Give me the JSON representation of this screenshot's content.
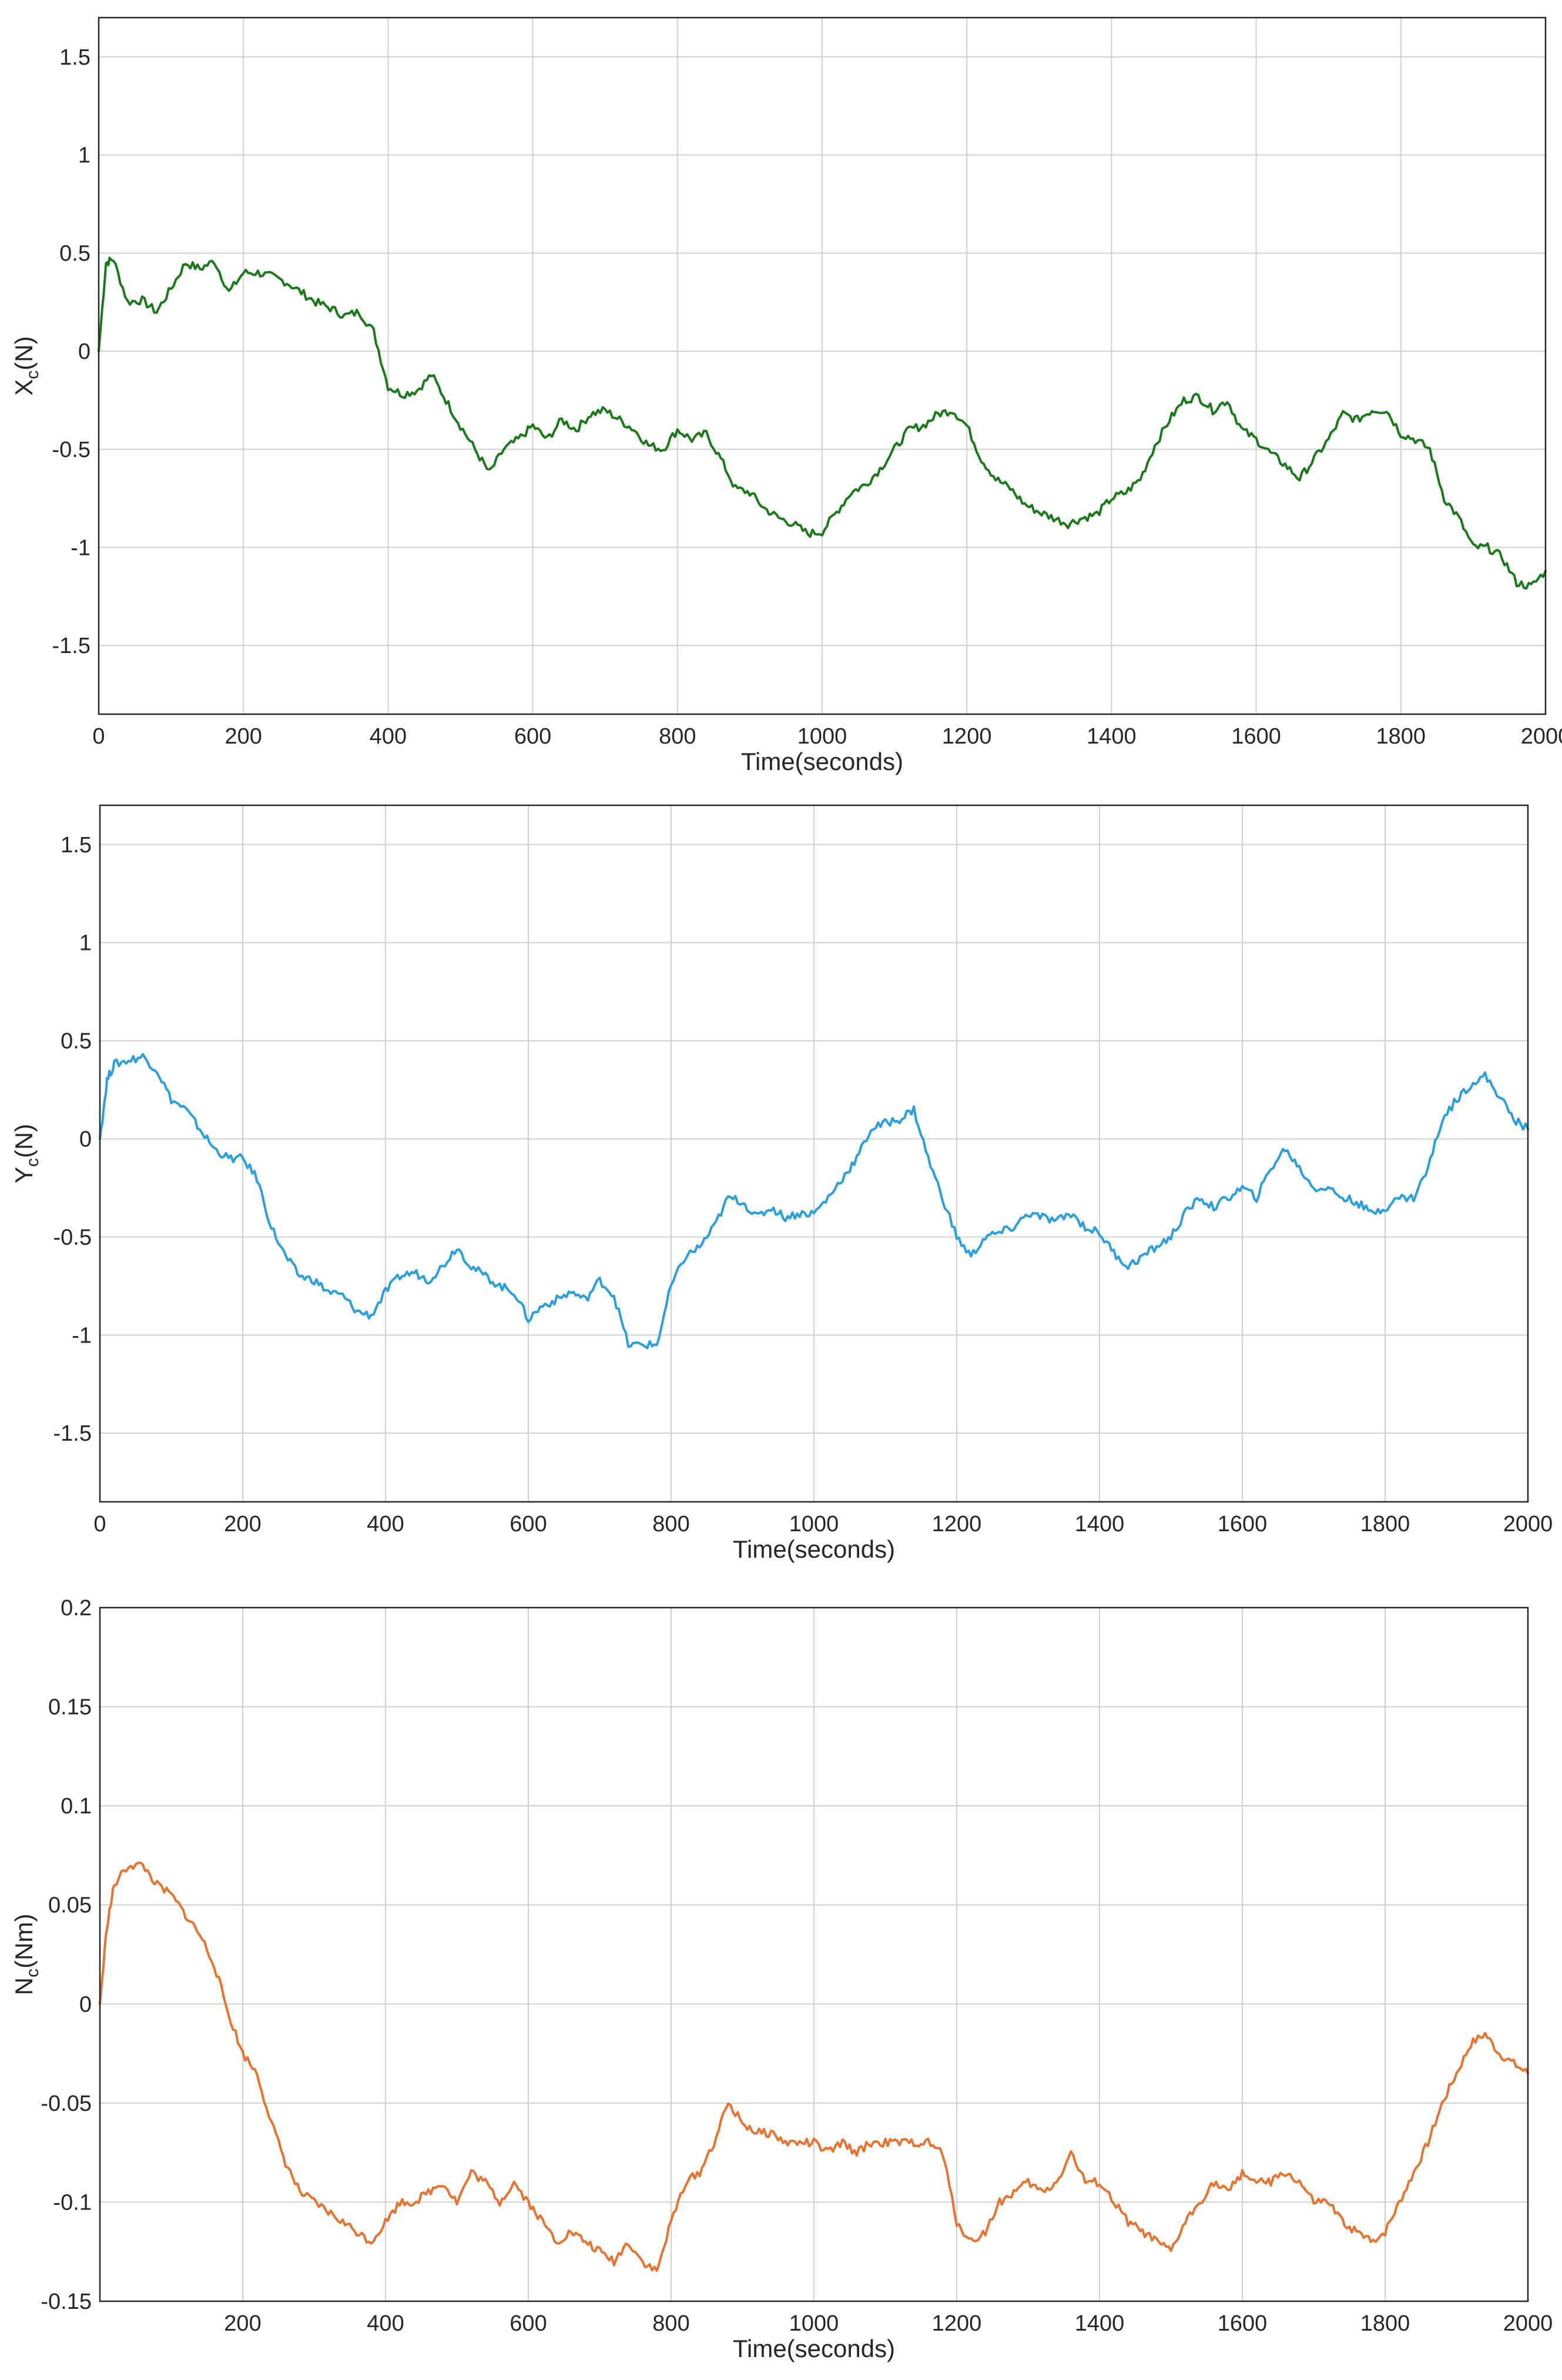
{
  "chart_data": [
    {
      "type": "line",
      "title": "",
      "xlabel": "Time(seconds)",
      "ylabel_main": "X",
      "ylabel_sub": "c",
      "ylabel_unit": "(N)",
      "xlim": [
        0,
        2000
      ],
      "ylim": [
        -1.85,
        1.7
      ],
      "xticks": [
        0,
        200,
        400,
        600,
        800,
        1000,
        1200,
        1400,
        1600,
        1800,
        2000
      ],
      "xtick_labels": [
        "0",
        "200",
        "400",
        "600",
        "800",
        "1000",
        "1200",
        "1400",
        "1600",
        "1800",
        "2000"
      ],
      "yticks": [
        1.5,
        1,
        0.5,
        0,
        -0.5,
        -1,
        -1.5
      ],
      "ytick_labels": [
        "1.5",
        "1",
        "0.5",
        "0",
        "-0.5",
        "-1",
        "-1.5"
      ],
      "grid": true,
      "color": "#1a7a1a",
      "series": [
        {
          "name": "Xc",
          "x": [
            0,
            10,
            20,
            40,
            60,
            80,
            100,
            120,
            140,
            160,
            180,
            200,
            220,
            240,
            260,
            280,
            300,
            320,
            340,
            360,
            380,
            400,
            420,
            440,
            460,
            480,
            500,
            520,
            540,
            560,
            580,
            600,
            620,
            640,
            660,
            680,
            700,
            720,
            740,
            760,
            780,
            800,
            820,
            840,
            860,
            880,
            900,
            920,
            940,
            960,
            980,
            1000,
            1020,
            1040,
            1060,
            1080,
            1100,
            1120,
            1140,
            1160,
            1180,
            1200,
            1220,
            1240,
            1260,
            1280,
            1300,
            1320,
            1340,
            1360,
            1380,
            1400,
            1420,
            1440,
            1460,
            1480,
            1500,
            1520,
            1540,
            1560,
            1580,
            1600,
            1620,
            1640,
            1660,
            1680,
            1700,
            1720,
            1740,
            1760,
            1780,
            1800,
            1820,
            1840,
            1860,
            1880,
            1900,
            1920,
            1940,
            1960,
            1980,
            2000
          ],
          "values": [
            0,
            0.45,
            0.47,
            0.25,
            0.26,
            0.2,
            0.32,
            0.45,
            0.42,
            0.46,
            0.3,
            0.4,
            0.4,
            0.38,
            0.35,
            0.3,
            0.25,
            0.22,
            0.18,
            0.2,
            0.1,
            -0.18,
            -0.22,
            -0.2,
            -0.12,
            -0.25,
            -0.38,
            -0.5,
            -0.62,
            -0.5,
            -0.45,
            -0.38,
            -0.45,
            -0.35,
            -0.4,
            -0.32,
            -0.3,
            -0.35,
            -0.4,
            -0.48,
            -0.5,
            -0.4,
            -0.45,
            -0.42,
            -0.55,
            -0.7,
            -0.72,
            -0.8,
            -0.85,
            -0.88,
            -0.93,
            -0.92,
            -0.82,
            -0.72,
            -0.68,
            -0.6,
            -0.5,
            -0.4,
            -0.38,
            -0.32,
            -0.3,
            -0.38,
            -0.55,
            -0.65,
            -0.7,
            -0.78,
            -0.82,
            -0.85,
            -0.88,
            -0.85,
            -0.83,
            -0.75,
            -0.72,
            -0.65,
            -0.48,
            -0.35,
            -0.25,
            -0.23,
            -0.3,
            -0.25,
            -0.4,
            -0.45,
            -0.52,
            -0.58,
            -0.65,
            -0.55,
            -0.45,
            -0.32,
            -0.35,
            -0.3,
            -0.3,
            -0.42,
            -0.45,
            -0.5,
            -0.75,
            -0.85,
            -1.0,
            -1.0,
            -1.05,
            -1.18,
            -1.2,
            -1.12
          ]
        }
      ]
    },
    {
      "type": "line",
      "title": "",
      "xlabel": "Time(seconds)",
      "ylabel_main": "Y",
      "ylabel_sub": "c",
      "ylabel_unit": "(N)",
      "xlim": [
        0,
        2000
      ],
      "ylim": [
        -1.85,
        1.7
      ],
      "xticks": [
        0,
        200,
        400,
        600,
        800,
        1000,
        1200,
        1400,
        1600,
        1800,
        2000
      ],
      "xtick_labels": [
        "0",
        "200",
        "400",
        "600",
        "800",
        "1000",
        "1200",
        "1400",
        "1600",
        "1800",
        "2000"
      ],
      "yticks": [
        1.5,
        1,
        0.5,
        0,
        -0.5,
        -1,
        -1.5
      ],
      "ytick_labels": [
        "1.5",
        "1",
        "0.5",
        "0",
        "-0.5",
        "-1",
        "-1.5"
      ],
      "grid": true,
      "color": "#2a9fe0",
      "series": [
        {
          "name": "Yc",
          "x": [
            0,
            10,
            20,
            40,
            60,
            80,
            100,
            120,
            140,
            160,
            180,
            200,
            220,
            240,
            260,
            280,
            300,
            320,
            340,
            360,
            380,
            400,
            420,
            440,
            460,
            480,
            500,
            520,
            540,
            560,
            580,
            600,
            620,
            640,
            660,
            680,
            700,
            720,
            740,
            760,
            780,
            800,
            820,
            840,
            860,
            880,
            900,
            920,
            940,
            960,
            980,
            1000,
            1020,
            1040,
            1060,
            1080,
            1100,
            1120,
            1140,
            1160,
            1180,
            1200,
            1220,
            1240,
            1260,
            1280,
            1300,
            1320,
            1340,
            1360,
            1380,
            1400,
            1420,
            1440,
            1460,
            1480,
            1500,
            1520,
            1540,
            1560,
            1580,
            1600,
            1620,
            1640,
            1660,
            1680,
            1700,
            1720,
            1740,
            1760,
            1780,
            1800,
            1820,
            1840,
            1860,
            1880,
            1900,
            1920,
            1940,
            1960,
            1980,
            2000
          ],
          "values": [
            0,
            0.3,
            0.38,
            0.4,
            0.42,
            0.35,
            0.2,
            0.15,
            0.05,
            -0.05,
            -0.1,
            -0.1,
            -0.2,
            -0.45,
            -0.6,
            -0.7,
            -0.72,
            -0.78,
            -0.8,
            -0.88,
            -0.9,
            -0.78,
            -0.7,
            -0.68,
            -0.72,
            -0.65,
            -0.55,
            -0.65,
            -0.7,
            -0.75,
            -0.78,
            -0.92,
            -0.85,
            -0.82,
            -0.78,
            -0.82,
            -0.72,
            -0.8,
            -1.05,
            -1.05,
            -1.05,
            -0.75,
            -0.6,
            -0.55,
            -0.45,
            -0.3,
            -0.32,
            -0.4,
            -0.35,
            -0.4,
            -0.38,
            -0.38,
            -0.3,
            -0.2,
            -0.1,
            0.05,
            0.08,
            0.1,
            0.15,
            -0.1,
            -0.3,
            -0.5,
            -0.6,
            -0.5,
            -0.48,
            -0.45,
            -0.38,
            -0.4,
            -0.42,
            -0.38,
            -0.45,
            -0.48,
            -0.58,
            -0.65,
            -0.6,
            -0.55,
            -0.5,
            -0.38,
            -0.3,
            -0.35,
            -0.3,
            -0.25,
            -0.3,
            -0.15,
            -0.05,
            -0.15,
            -0.25,
            -0.25,
            -0.3,
            -0.32,
            -0.38,
            -0.35,
            -0.3,
            -0.3,
            -0.15,
            0.1,
            0.2,
            0.28,
            0.32,
            0.22,
            0.1,
            0.05
          ]
        }
      ]
    },
    {
      "type": "line",
      "title": "",
      "xlabel": "Time(seconds)",
      "ylabel_main": "N",
      "ylabel_sub": "c",
      "ylabel_unit": "(Nm)",
      "xlim": [
        0,
        2000
      ],
      "ylim": [
        -0.15,
        0.2
      ],
      "xticks": [
        200,
        400,
        600,
        800,
        1000,
        1200,
        1400,
        1600,
        1800,
        2000
      ],
      "xtick_labels": [
        "200",
        "400",
        "600",
        "800",
        "1000",
        "1200",
        "1400",
        "1600",
        "1800",
        "2000"
      ],
      "yticks": [
        0.2,
        0.15,
        0.1,
        0.05,
        0,
        -0.05,
        -0.1,
        -0.15
      ],
      "ytick_labels": [
        "0.2",
        "0.15",
        "0.1",
        "0.05",
        "0",
        "-0.05",
        "-0.1",
        "-0.15"
      ],
      "grid": true,
      "color": "#e8732e",
      "series": [
        {
          "name": "Nc",
          "x": [
            0,
            10,
            20,
            40,
            60,
            80,
            100,
            120,
            140,
            160,
            180,
            200,
            220,
            240,
            260,
            280,
            300,
            320,
            340,
            360,
            380,
            400,
            420,
            440,
            460,
            480,
            500,
            520,
            540,
            560,
            580,
            600,
            620,
            640,
            660,
            680,
            700,
            720,
            740,
            760,
            780,
            800,
            820,
            840,
            860,
            880,
            900,
            920,
            940,
            960,
            980,
            1000,
            1020,
            1040,
            1060,
            1080,
            1100,
            1120,
            1140,
            1160,
            1180,
            1200,
            1220,
            1240,
            1260,
            1280,
            1300,
            1320,
            1340,
            1360,
            1380,
            1400,
            1420,
            1440,
            1460,
            1480,
            1500,
            1520,
            1540,
            1560,
            1580,
            1600,
            1620,
            1640,
            1660,
            1680,
            1700,
            1720,
            1740,
            1760,
            1780,
            1800,
            1820,
            1840,
            1860,
            1880,
            1900,
            1920,
            1940,
            1960,
            1980,
            2000
          ],
          "values": [
            0,
            0.04,
            0.06,
            0.07,
            0.07,
            0.06,
            0.055,
            0.045,
            0.035,
            0.02,
            -0.005,
            -0.025,
            -0.035,
            -0.06,
            -0.08,
            -0.095,
            -0.1,
            -0.105,
            -0.11,
            -0.115,
            -0.12,
            -0.11,
            -0.1,
            -0.1,
            -0.095,
            -0.09,
            -0.1,
            -0.085,
            -0.09,
            -0.1,
            -0.09,
            -0.1,
            -0.11,
            -0.12,
            -0.115,
            -0.12,
            -0.125,
            -0.13,
            -0.12,
            -0.13,
            -0.135,
            -0.11,
            -0.09,
            -0.085,
            -0.07,
            -0.05,
            -0.06,
            -0.065,
            -0.065,
            -0.07,
            -0.07,
            -0.07,
            -0.075,
            -0.07,
            -0.075,
            -0.07,
            -0.07,
            -0.07,
            -0.07,
            -0.07,
            -0.075,
            -0.11,
            -0.12,
            -0.115,
            -0.1,
            -0.095,
            -0.09,
            -0.095,
            -0.09,
            -0.075,
            -0.09,
            -0.09,
            -0.1,
            -0.11,
            -0.115,
            -0.12,
            -0.125,
            -0.11,
            -0.1,
            -0.09,
            -0.095,
            -0.085,
            -0.09,
            -0.09,
            -0.085,
            -0.09,
            -0.1,
            -0.1,
            -0.11,
            -0.115,
            -0.12,
            -0.115,
            -0.1,
            -0.085,
            -0.07,
            -0.05,
            -0.035,
            -0.02,
            -0.015,
            -0.025,
            -0.03,
            -0.035
          ]
        }
      ]
    }
  ]
}
